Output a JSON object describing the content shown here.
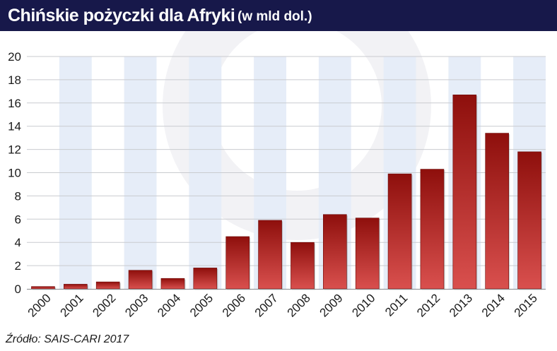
{
  "header": {
    "title": "Chińskie pożyczki dla Afryki",
    "subtitle": "(w mld dol.)"
  },
  "footer": {
    "source": "Źródło: SAIS-CARI 2017"
  },
  "chart_data": {
    "type": "bar",
    "title": "Chińskie pożyczki dla Afryki",
    "subtitle": "(w mld dol.)",
    "categories": [
      "2000",
      "2001",
      "2002",
      "2003",
      "2004",
      "2005",
      "2006",
      "2007",
      "2008",
      "2009",
      "2010",
      "2011",
      "2012",
      "2013",
      "2014",
      "2015"
    ],
    "values": [
      0.2,
      0.4,
      0.6,
      1.6,
      0.9,
      1.8,
      4.5,
      5.9,
      4.0,
      6.4,
      6.1,
      9.9,
      10.3,
      16.7,
      13.4,
      11.8
    ],
    "ylim": [
      0,
      20
    ],
    "yticks": [
      0,
      2,
      4,
      6,
      8,
      10,
      12,
      14,
      16,
      18,
      20
    ],
    "grid": true,
    "colors": {
      "bar_top": "#8e0f0c",
      "bar_bottom": "#d9504e",
      "stripe": "#e6edf8",
      "grid": "#c9cbcf",
      "header": "#17184a"
    }
  }
}
